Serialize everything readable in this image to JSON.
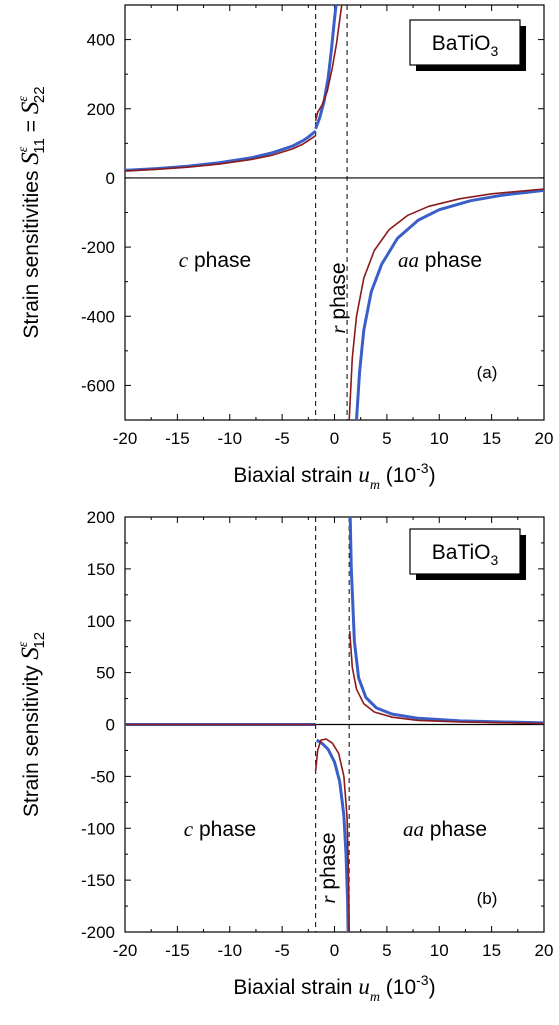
{
  "chart_data": [
    {
      "type": "line",
      "panel_label": "(a)",
      "material": {
        "base": "BaTiO",
        "sub": "3"
      },
      "ylabel": {
        "text": "Strain sensitivities",
        "symbol": "S",
        "sup": "ε",
        "sub1": "11",
        "eq": " = ",
        "sub2": "22"
      },
      "xlabel": {
        "text": "Biaxial strain ",
        "symbol": "u",
        "sub": "m",
        "unit": " (10",
        "unit_sup": "-3",
        "unit_end": ")"
      },
      "xlim": [
        -20,
        20
      ],
      "ylim": [
        -700,
        500
      ],
      "xticks": [
        -20,
        -15,
        -10,
        -5,
        0,
        5,
        10,
        15,
        20
      ],
      "yticks": [
        -600,
        -400,
        -200,
        0,
        200,
        400
      ],
      "phase_boundaries": [
        -1.8,
        1.2
      ],
      "phases": [
        {
          "name_italic": "c",
          "name_rest": " phase"
        },
        {
          "name_italic": "r",
          "name_rest": " phase"
        },
        {
          "name_italic": "aa",
          "name_rest": " phase"
        }
      ],
      "series": [
        {
          "color": "#3a5fc8",
          "segments": [
            [
              [
                -20,
                22
              ],
              [
                -17,
                27
              ],
              [
                -14,
                34
              ],
              [
                -11,
                44
              ],
              [
                -8,
                58
              ],
              [
                -6,
                72
              ],
              [
                -4,
                92
              ],
              [
                -3,
                108
              ],
              [
                -2.5,
                118
              ],
              [
                -1.8,
                135
              ]
            ],
            [
              [
                -1.8,
                142
              ],
              [
                -1.4,
                175
              ],
              [
                -1.0,
                220
              ],
              [
                -0.6,
                290
              ],
              [
                -0.3,
                370
              ],
              [
                0.0,
                460
              ],
              [
                0.15,
                500
              ]
            ],
            [
              [
                2.1,
                -700
              ],
              [
                2.4,
                -560
              ],
              [
                2.8,
                -440
              ],
              [
                3.5,
                -330
              ],
              [
                4.5,
                -250
              ],
              [
                6,
                -175
              ],
              [
                8,
                -122
              ],
              [
                10,
                -92
              ],
              [
                13,
                -66
              ],
              [
                16,
                -50
              ],
              [
                20,
                -36
              ]
            ]
          ]
        },
        {
          "color": "#8b1a1a",
          "segments": [
            [
              [
                -20,
                20
              ],
              [
                -17,
                25
              ],
              [
                -14,
                31
              ],
              [
                -11,
                40
              ],
              [
                -8,
                53
              ],
              [
                -6,
                65
              ],
              [
                -4,
                84
              ],
              [
                -3,
                98
              ],
              [
                -2.5,
                108
              ],
              [
                -1.8,
                122
              ]
            ],
            [
              [
                -1.8,
                165
              ],
              [
                -1.6,
                190
              ],
              [
                -1.2,
                210
              ],
              [
                -0.7,
                250
              ],
              [
                -0.2,
                320
              ],
              [
                0.2,
                390
              ],
              [
                0.6,
                480
              ],
              [
                0.7,
                500
              ]
            ],
            [
              [
                1.4,
                -700
              ],
              [
                1.7,
                -520
              ],
              [
                2.1,
                -400
              ],
              [
                2.8,
                -290
              ],
              [
                3.8,
                -210
              ],
              [
                5.2,
                -150
              ],
              [
                7,
                -108
              ],
              [
                9,
                -82
              ],
              [
                12,
                -60
              ],
              [
                15,
                -46
              ],
              [
                20,
                -32
              ]
            ]
          ]
        }
      ]
    },
    {
      "type": "line",
      "panel_label": "(b)",
      "material": {
        "base": "BaTiO",
        "sub": "3"
      },
      "ylabel": {
        "text": "Strain sensitivity",
        "symbol": "S",
        "sup": "ε",
        "sub1": "12"
      },
      "xlabel": {
        "text": "Biaxial strain ",
        "symbol": "u",
        "sub": "m",
        "unit": " (10",
        "unit_sup": "-3",
        "unit_end": ")"
      },
      "xlim": [
        -20,
        20
      ],
      "ylim": [
        -200,
        200
      ],
      "xticks": [
        -20,
        -15,
        -10,
        -5,
        0,
        5,
        10,
        15,
        20
      ],
      "yticks": [
        -200,
        -150,
        -100,
        -50,
        0,
        50,
        100,
        150,
        200
      ],
      "phase_boundaries": [
        -1.8,
        1.4
      ],
      "phases": [
        {
          "name_italic": "c",
          "name_rest": " phase"
        },
        {
          "name_italic": "r",
          "name_rest": " phase"
        },
        {
          "name_italic": "aa",
          "name_rest": " phase"
        }
      ],
      "series": [
        {
          "color": "#3a5fc8",
          "segments": [
            [
              [
                -20,
                0
              ],
              [
                -1.8,
                0
              ]
            ],
            [
              [
                -1.7,
                -15
              ],
              [
                -1.2,
                -18
              ],
              [
                -0.6,
                -24
              ],
              [
                0.0,
                -36
              ],
              [
                0.5,
                -55
              ],
              [
                0.9,
                -88
              ],
              [
                1.1,
                -125
              ],
              [
                1.25,
                -170
              ],
              [
                1.3,
                -200
              ]
            ],
            [
              [
                1.5,
                200
              ],
              [
                1.6,
                150
              ],
              [
                1.9,
                80
              ],
              [
                2.3,
                45
              ],
              [
                3,
                26
              ],
              [
                4,
                16
              ],
              [
                5.5,
                10
              ],
              [
                8,
                6
              ],
              [
                12,
                3.5
              ],
              [
                20,
                1.5
              ]
            ]
          ]
        },
        {
          "color": "#8b1a1a",
          "segments": [
            [
              [
                -20,
                0
              ],
              [
                -1.8,
                0
              ]
            ],
            [
              [
                -1.8,
                -45
              ],
              [
                -1.6,
                -25
              ],
              [
                -1.3,
                -15
              ],
              [
                -0.8,
                -14
              ],
              [
                -0.2,
                -18
              ],
              [
                0.4,
                -28
              ],
              [
                0.9,
                -50
              ],
              [
                1.2,
                -90
              ],
              [
                1.35,
                -150
              ],
              [
                1.4,
                -200
              ]
            ],
            [
              [
                1.45,
                90
              ],
              [
                1.7,
                55
              ],
              [
                2.1,
                34
              ],
              [
                2.8,
                20
              ],
              [
                3.8,
                12
              ],
              [
                5.5,
                7
              ],
              [
                8,
                4
              ],
              [
                12,
                2.5
              ],
              [
                20,
                1
              ]
            ]
          ]
        }
      ]
    }
  ]
}
